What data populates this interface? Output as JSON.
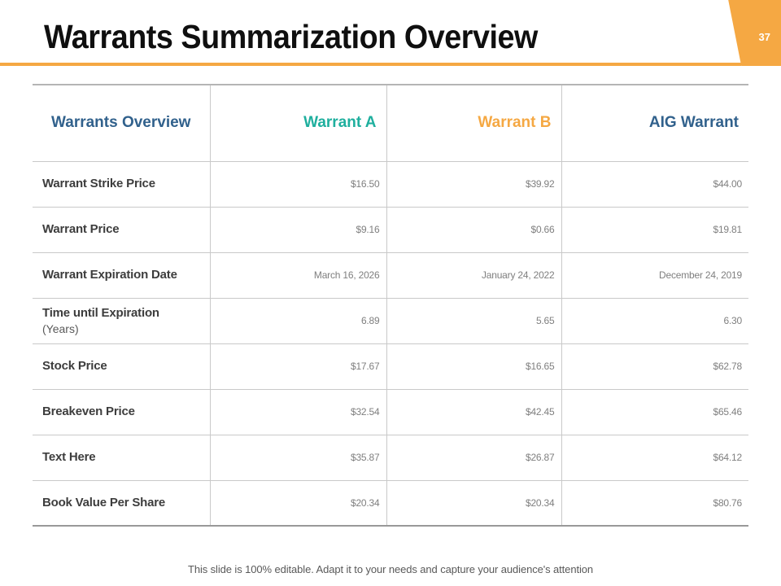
{
  "slide": {
    "title": "Warrants Summarization Overview",
    "page_number": "37",
    "footer": "This slide is 100% editable. Adapt it to your needs and capture your audience's attention",
    "colors": {
      "accent_orange": "#F5A843",
      "accent_teal": "#1FAF9E",
      "accent_blue": "#31618C"
    }
  },
  "table": {
    "headers": [
      {
        "label": "Warrants Overview",
        "color": "#31618C"
      },
      {
        "label": "Warrant A",
        "color": "#1FAF9E"
      },
      {
        "label": "Warrant B",
        "color": "#F5A843"
      },
      {
        "label": "AIG Warrant",
        "color": "#31618C"
      }
    ],
    "rows": [
      {
        "label": "Warrant Strike Price",
        "sub": "",
        "warrant_a": "$16.50",
        "warrant_b": "$39.92",
        "aig_warrant": "$44.00"
      },
      {
        "label": "Warrant Price",
        "sub": "",
        "warrant_a": "$9.16",
        "warrant_b": "$0.66",
        "aig_warrant": "$19.81"
      },
      {
        "label": "Warrant Expiration Date",
        "sub": "",
        "warrant_a": "March 16, 2026",
        "warrant_b": "January 24, 2022",
        "aig_warrant": "December 24, 2019"
      },
      {
        "label": "Time until Expiration",
        "sub": "(Years)",
        "warrant_a": "6.89",
        "warrant_b": "5.65",
        "aig_warrant": "6.30"
      },
      {
        "label": "Stock Price",
        "sub": "",
        "warrant_a": "$17.67",
        "warrant_b": "$16.65",
        "aig_warrant": "$62.78"
      },
      {
        "label": "Breakeven Price",
        "sub": "",
        "warrant_a": "$32.54",
        "warrant_b": "$42.45",
        "aig_warrant": "$65.46"
      },
      {
        "label": "Text Here",
        "sub": "",
        "warrant_a": "$35.87",
        "warrant_b": "$26.87",
        "aig_warrant": "$64.12"
      },
      {
        "label": "Book Value Per Share",
        "sub": "",
        "warrant_a": "$20.34",
        "warrant_b": "$20.34",
        "aig_warrant": "$80.76"
      }
    ]
  }
}
